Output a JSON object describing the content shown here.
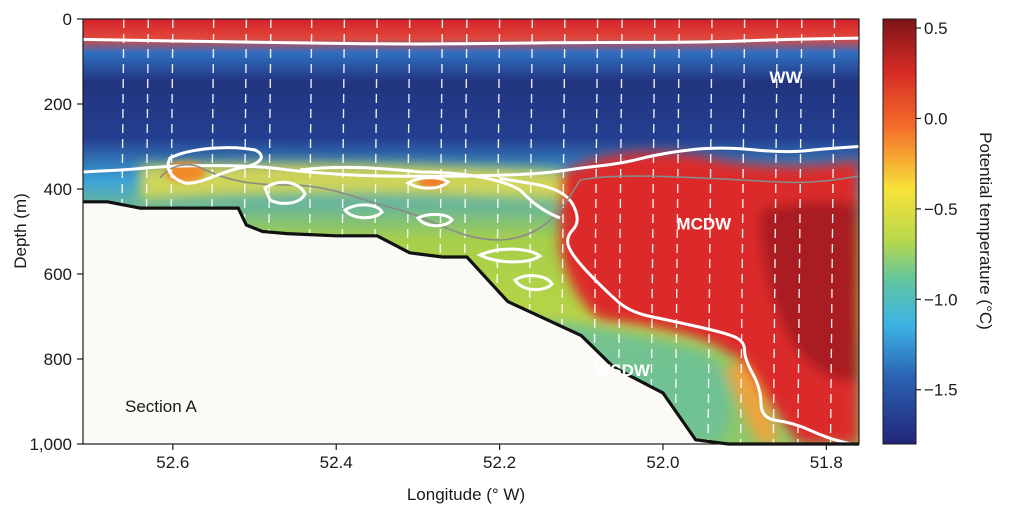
{
  "chart_data": {
    "type": "heatmap",
    "section_label": "Section A",
    "xlabel": "Longitude (° W)",
    "ylabel": "Depth (m)",
    "colorbar_label": "Potential temperature (°C)",
    "x_reversed": true,
    "y_reversed": true,
    "xlim": [
      52.71,
      51.76
    ],
    "ylim": [
      0,
      1000
    ],
    "xticks": [
      52.6,
      52.4,
      52.2,
      52.0,
      51.8
    ],
    "xtick_labels": [
      "52.6",
      "52.4",
      "52.2",
      "52.0",
      "51.8"
    ],
    "yticks": [
      0,
      200,
      400,
      600,
      800,
      1000
    ],
    "ytick_labels": [
      "0",
      "200",
      "400",
      "600",
      "800",
      "1,000"
    ],
    "colorbar": {
      "range": [
        -1.8,
        0.55
      ],
      "ticks": [
        0.5,
        0.0,
        -0.5,
        -1.0,
        -1.5
      ],
      "tick_labels": [
        "0.5",
        "0.0",
        "−0.5",
        "−1.0",
        "−1.5"
      ],
      "colormap": "jet"
    },
    "water_masses": [
      {
        "label": "WW",
        "lon": 51.85,
        "depth": 150
      },
      {
        "label": "MCDW",
        "lon": 51.95,
        "depth": 495
      },
      {
        "label": "WSDW",
        "lon": 52.05,
        "depth": 840
      }
    ],
    "bathymetry": [
      [
        52.71,
        430
      ],
      [
        52.68,
        430
      ],
      [
        52.64,
        445
      ],
      [
        52.55,
        445
      ],
      [
        52.52,
        445
      ],
      [
        52.51,
        485
      ],
      [
        52.49,
        500
      ],
      [
        52.46,
        505
      ],
      [
        52.4,
        510
      ],
      [
        52.35,
        510
      ],
      [
        52.31,
        550
      ],
      [
        52.27,
        560
      ],
      [
        52.24,
        560
      ],
      [
        52.19,
        665
      ],
      [
        52.1,
        745
      ],
      [
        52.06,
        820
      ],
      [
        52.0,
        880
      ],
      [
        51.96,
        990
      ],
      [
        51.92,
        1000
      ],
      [
        51.76,
        1000
      ]
    ],
    "cast_longitudes": [
      52.66,
      52.63,
      52.6,
      52.55,
      52.51,
      52.48,
      52.43,
      52.39,
      52.35,
      52.31,
      52.27,
      52.24,
      52.2,
      52.16,
      52.12,
      52.08,
      52.05,
      52.01,
      51.98,
      51.94,
      51.9,
      51.86,
      51.83,
      51.79
    ],
    "isotherm_minus0p4_interface": [
      [
        52.71,
        360
      ],
      [
        52.66,
        355
      ],
      [
        52.6,
        345
      ],
      [
        52.5,
        345
      ],
      [
        52.44,
        360
      ],
      [
        52.36,
        370
      ],
      [
        52.25,
        370
      ],
      [
        52.15,
        365
      ],
      [
        52.1,
        350
      ],
      [
        52.05,
        340
      ],
      [
        52.0,
        315
      ],
      [
        51.93,
        300
      ],
      [
        51.85,
        315
      ],
      [
        51.8,
        305
      ],
      [
        51.76,
        300
      ]
    ],
    "mcdw_lower_boundary": [
      [
        52.2,
        375
      ],
      [
        52.12,
        400
      ],
      [
        52.1,
        475
      ],
      [
        52.12,
        515
      ],
      [
        52.11,
        560
      ],
      [
        52.07,
        640
      ],
      [
        52.04,
        690
      ],
      [
        51.99,
        710
      ],
      [
        51.92,
        740
      ],
      [
        51.9,
        760
      ],
      [
        51.9,
        800
      ],
      [
        51.88,
        870
      ],
      [
        51.88,
        940
      ],
      [
        51.84,
        950
      ],
      [
        51.8,
        985
      ],
      [
        51.77,
        1000
      ]
    ],
    "ww_base_isotherm": [
      [
        52.71,
        48
      ],
      [
        52.5,
        55
      ],
      [
        52.3,
        60
      ],
      [
        52.1,
        55
      ],
      [
        51.95,
        55
      ],
      [
        51.85,
        48
      ],
      [
        51.76,
        45
      ]
    ]
  }
}
